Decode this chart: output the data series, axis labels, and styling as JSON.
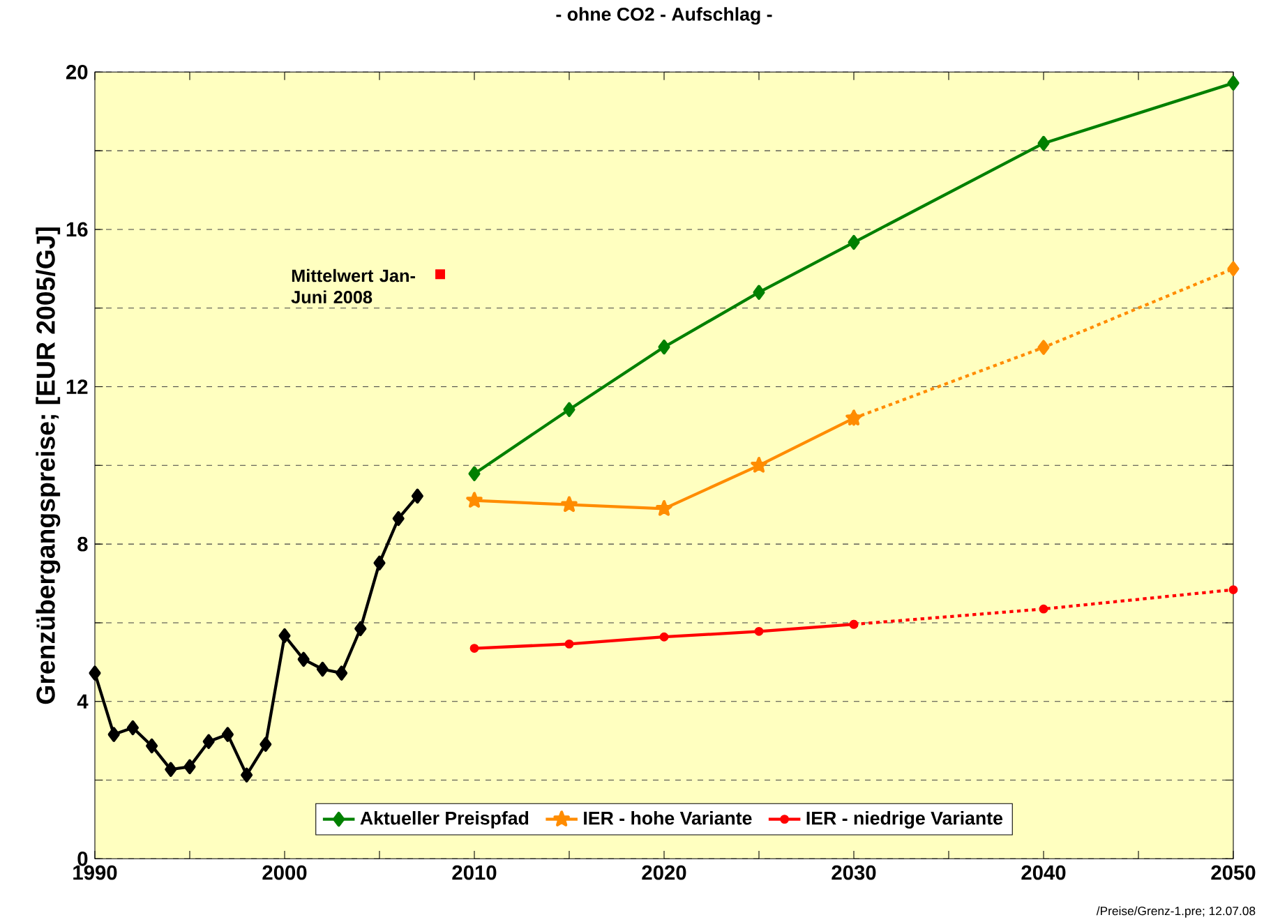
{
  "chart_data": {
    "type": "line",
    "title": "- ohne CO2 - Aufschlag -",
    "ylabel": "Grenzübergangspreise; [EUR 2005/GJ]",
    "xlim": [
      1990,
      2050
    ],
    "ylim": [
      0,
      20
    ],
    "xticks": [
      1990,
      {
        "value": 1995,
        "label": null
      },
      2000,
      {
        "value": 2005,
        "label": null
      },
      2010,
      {
        "value": 2015,
        "label": null
      },
      2020,
      {
        "value": 2025,
        "label": null
      },
      2030,
      {
        "value": 2035,
        "label": null
      },
      2040,
      {
        "value": 2045,
        "label": null
      },
      2050
    ],
    "yticks": [
      0,
      {
        "value": 2,
        "label": null
      },
      4,
      {
        "value": 6,
        "label": null
      },
      8,
      {
        "value": 10,
        "label": null
      },
      12,
      {
        "value": 14,
        "label": null
      },
      16,
      {
        "value": 18,
        "label": null
      },
      20
    ],
    "grid": "y",
    "legend": "bottom",
    "series": [
      {
        "color": "#000000",
        "marker": "diamond",
        "line_style": "solid",
        "x": [
          1990,
          1991,
          1992,
          1993,
          1994,
          1995,
          1996,
          1997,
          1998,
          1999,
          2000,
          2001,
          2002,
          2003,
          2004,
          2005,
          2006,
          2007
        ],
        "values": [
          4.72,
          3.16,
          3.33,
          2.87,
          2.27,
          2.34,
          2.98,
          3.16,
          2.13,
          2.91,
          5.67,
          5.07,
          4.82,
          4.72,
          5.85,
          7.52,
          8.65,
          9.22
        ]
      },
      {
        "name": "Aktueller Preispfad",
        "color": "#008000",
        "marker": "diamond",
        "line_style": "solid",
        "x": [
          2010,
          2015,
          2020,
          2025,
          2030,
          2040,
          2050
        ],
        "values": [
          9.79,
          11.42,
          13.01,
          14.4,
          15.67,
          18.19,
          19.72
        ]
      },
      {
        "name": "IER - hohe Variante",
        "color": "#ff8c00",
        "marker": "star",
        "line_style": "solid",
        "x": [
          2010,
          2015,
          2020,
          2025,
          2030
        ],
        "values": [
          9.11,
          9.0,
          8.9,
          10.0,
          11.2
        ]
      },
      {
        "color": "#ff8c00",
        "marker": "diamond",
        "line_style": "dotted",
        "x": [
          2030,
          2040,
          2050
        ],
        "values": [
          11.2,
          13.0,
          15.0
        ]
      },
      {
        "name": "IER - niedrige Variante",
        "color": "#ff0000",
        "marker": "circle",
        "line_style": "solid",
        "x": [
          2010,
          2015,
          2020,
          2025,
          2030
        ],
        "values": [
          5.35,
          5.46,
          5.64,
          5.78,
          5.96
        ]
      },
      {
        "color": "#ff0000",
        "marker": "circle",
        "line_style": "dotted",
        "x": [
          2030,
          2040,
          2050
        ],
        "values": [
          5.96,
          6.35,
          6.84
        ]
      },
      {
        "type": "scatter",
        "color": "#ff0000",
        "marker": "square",
        "x": [
          2008.2
        ],
        "values": [
          14.86
        ]
      }
    ],
    "annotations": [
      {
        "text": "Mittelwert Jan-Juni 2008",
        "x": 2008.2,
        "y": 14.86
      },
      "/Preise/Grenz-1.pre; 12.07.08"
    ]
  }
}
